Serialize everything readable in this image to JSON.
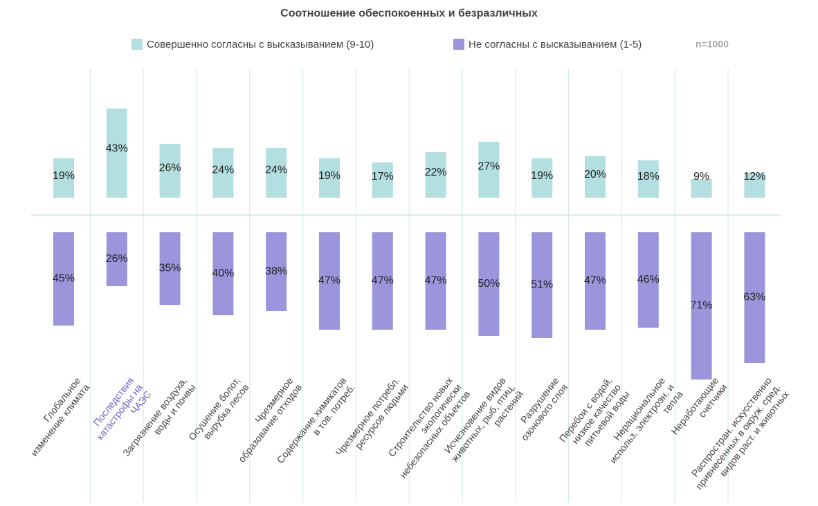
{
  "chart_data": {
    "type": "diverging_bar",
    "title": "Соотношение обеспокоенных и безразличных",
    "annotation": "n=1000",
    "categories": [
      "Глобальное\nизменение климата",
      "Последствия\nкатастрофы на\nЧАЭС",
      "Загрязнение воздуха,\nводы и почвы",
      "Осушение болот,\nвырубка лесов",
      "Чрезмерное\nобразование отходов",
      "Содержание химикатов\nв тов. потреб.",
      "Чрезмерное потребл.\nресурсов людьми",
      "Строительство новых\nэкологически\nнебезопасных объектов",
      "Исчезновение видов\nживотных, рыб, птиц,\nрастений",
      "Разрушение\nозонового слоя",
      "Перебои с водой,\nнизкое качество\nпитьевой воды",
      "Нерациональное\nиспольз. электроэн. и\nтепла",
      "Неработающие\nсчетчики",
      "Распростран. искусственно\nпривнесенных в окруж. сред.\nвидов раст. и животных"
    ],
    "category_colors": [
      "#444444",
      "#6b63cc",
      "#444444",
      "#444444",
      "#444444",
      "#444444",
      "#444444",
      "#444444",
      "#444444",
      "#444444",
      "#444444",
      "#444444",
      "#444444",
      "#444444"
    ],
    "series": [
      {
        "name": "Совершенно согласны с высказыванием (9-10)",
        "color": "#b3dfe0",
        "values": [
          19,
          43,
          26,
          24,
          24,
          19,
          17,
          22,
          27,
          19,
          20,
          18,
          9,
          12
        ],
        "value_labels": [
          "19%",
          "43%",
          "26%",
          "24%",
          "24%",
          "19%",
          "17%",
          "22%",
          "27%",
          "19%",
          "20%",
          "18%",
          "9%",
          "12%"
        ]
      },
      {
        "name": "Не согласны с высказыванием (1-5)",
        "color": "#9b95dc",
        "values": [
          45,
          26,
          35,
          40,
          38,
          47,
          47,
          47,
          50,
          51,
          47,
          46,
          71,
          63
        ],
        "value_labels": [
          "45%",
          "26%",
          "35%",
          "40%",
          "38%",
          "47%",
          "47%",
          "47%",
          "50%",
          "51%",
          "47%",
          "46%",
          "71%",
          "63%"
        ]
      }
    ],
    "grid": true
  }
}
